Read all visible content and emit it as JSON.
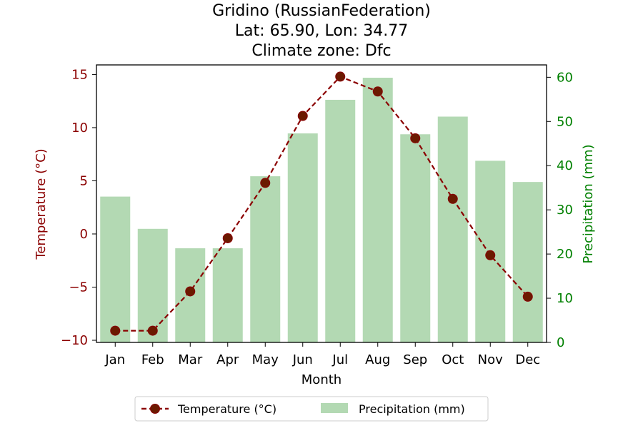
{
  "chart_data": {
    "type": "bar+line",
    "title_lines": [
      "Gridino (RussianFederation)",
      "Lat: 65.90, Lon: 34.77",
      "Climate zone: Dfc"
    ],
    "xlabel": "Month",
    "categories": [
      "Jan",
      "Feb",
      "Mar",
      "Apr",
      "May",
      "Jun",
      "Jul",
      "Aug",
      "Sep",
      "Oct",
      "Nov",
      "Dec"
    ],
    "temperature": {
      "name": "Temperature (°C)",
      "axis_label": "Temperature (°C)",
      "values": [
        -9.1,
        -9.1,
        -5.4,
        -0.4,
        4.8,
        11.1,
        14.8,
        13.4,
        9.0,
        3.3,
        -2.0,
        -5.9
      ],
      "ylim": [
        -10.2,
        15.9
      ],
      "ticks": [
        -10,
        -5,
        0,
        5,
        10,
        15
      ],
      "tick_labels": [
        "−10",
        "−5",
        "0",
        "5",
        "10",
        "15"
      ],
      "color": "#8b0000",
      "marker_color": "#6b1a00"
    },
    "precipitation": {
      "name": "Precipitation (mm)",
      "axis_label": "Precipitation (mm)",
      "values": [
        33,
        25.7,
        21.3,
        21.3,
        37.6,
        47.3,
        54.9,
        59.9,
        47.1,
        51.1,
        41.1,
        36.3
      ],
      "ylim": [
        0,
        62.8
      ],
      "ticks": [
        0,
        10,
        20,
        30,
        40,
        50,
        60
      ],
      "tick_labels": [
        "0",
        "10",
        "20",
        "30",
        "40",
        "50",
        "60"
      ],
      "color": "#b3d9b3",
      "axis_color": "#008000"
    },
    "legend_position": "bottom-center",
    "grid": false
  }
}
